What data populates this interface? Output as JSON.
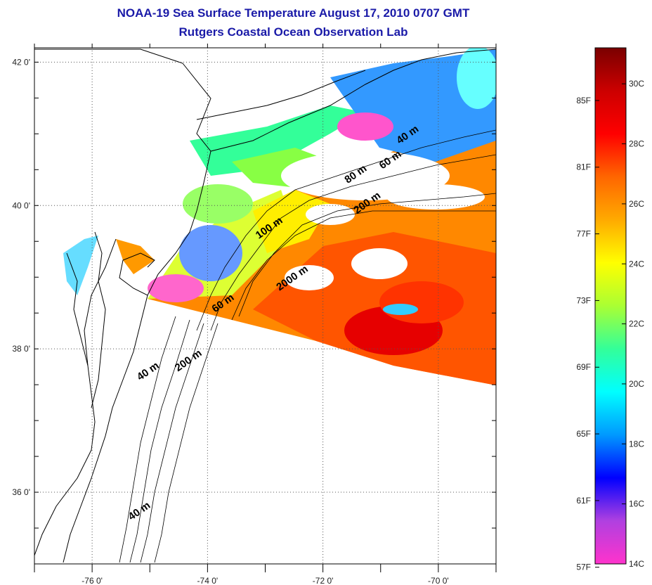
{
  "title": {
    "line1": "NOAA-19 Sea Surface Temperature August 17, 2010 0707 GMT",
    "line2": "Rutgers Coastal Ocean Observation Lab"
  },
  "axes": {
    "lat_labels": [
      "42 0'",
      "40 0'",
      "38 0'",
      "36 0'"
    ],
    "lat_values": [
      42,
      40,
      38,
      36
    ],
    "lon_labels": [
      "-76 0'",
      "-74 0'",
      "-72 0'",
      "-70 0'"
    ],
    "lon_values": [
      -76,
      -74,
      -72,
      -70
    ],
    "lat_range": [
      35,
      42.2
    ],
    "lon_range": [
      -77,
      -69
    ],
    "grid": "dotted"
  },
  "contour_labels": [
    {
      "text": "40 m",
      "lon": -70.5,
      "lat": 40.95
    },
    {
      "text": "60 m",
      "lon": -70.8,
      "lat": 40.6
    },
    {
      "text": "80 m",
      "lon": -71.4,
      "lat": 40.4
    },
    {
      "text": "200 m",
      "lon": -71.2,
      "lat": 40.0
    },
    {
      "text": "100 m",
      "lon": -72.9,
      "lat": 39.65
    },
    {
      "text": "2000 m",
      "lon": -72.5,
      "lat": 38.95
    },
    {
      "text": "60 m",
      "lon": -73.7,
      "lat": 38.6
    },
    {
      "text": "40 m",
      "lon": -75.0,
      "lat": 37.65
    },
    {
      "text": "200 m",
      "lon": -74.3,
      "lat": 37.8
    },
    {
      "text": "40 m",
      "lon": -75.15,
      "lat": 35.7
    }
  ],
  "colorbar": {
    "fahrenheit_labels": [
      "85F",
      "81F",
      "77F",
      "73F",
      "69F",
      "65F",
      "61F",
      "57F"
    ],
    "celsius_labels": [
      "30C",
      "28C",
      "26C",
      "24C",
      "22C",
      "20C",
      "18C",
      "16C",
      "14C"
    ],
    "range_c": [
      14,
      31.2
    ],
    "colors": [
      "#ff33cc",
      "#b040e0",
      "#0000ff",
      "#0099ff",
      "#00ffff",
      "#33ff99",
      "#aaff33",
      "#ffff00",
      "#ffaa00",
      "#ff6600",
      "#ff0000",
      "#cc0000",
      "#7a0000"
    ]
  }
}
